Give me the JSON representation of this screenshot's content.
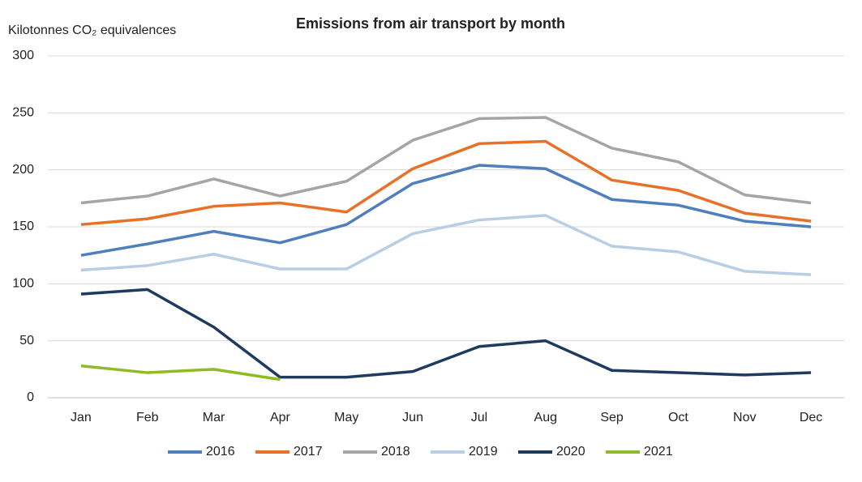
{
  "chart_data": {
    "type": "line",
    "title": "Emissions from air transport by month",
    "y_label": "Kilotonnes CO₂ equivalences",
    "categories": [
      "Jan",
      "Feb",
      "Mar",
      "Apr",
      "May",
      "Jun",
      "Jul",
      "Aug",
      "Sep",
      "Oct",
      "Nov",
      "Dec"
    ],
    "series": [
      {
        "name": "2016",
        "color": "#4f7fbf",
        "values": [
          125,
          135,
          146,
          136,
          152,
          188,
          204,
          201,
          174,
          169,
          155,
          150
        ]
      },
      {
        "name": "2017",
        "color": "#e8712a",
        "values": [
          152,
          157,
          168,
          171,
          163,
          201,
          223,
          225,
          191,
          182,
          162,
          155
        ]
      },
      {
        "name": "2018",
        "color": "#a5a5a5",
        "values": [
          171,
          177,
          192,
          177,
          190,
          226,
          245,
          246,
          219,
          207,
          178,
          171
        ]
      },
      {
        "name": "2019",
        "color": "#b9cde4",
        "values": [
          112,
          116,
          126,
          113,
          113,
          144,
          156,
          160,
          133,
          128,
          111,
          108
        ]
      },
      {
        "name": "2020",
        "color": "#1f3a5f",
        "values": [
          91,
          95,
          62,
          18,
          18,
          23,
          45,
          50,
          24,
          22,
          20,
          22
        ]
      },
      {
        "name": "2021",
        "color": "#8fbc23",
        "values": [
          28,
          22,
          25,
          16,
          null,
          null,
          null,
          null,
          null,
          null,
          null,
          null
        ]
      }
    ],
    "ylim": [
      0,
      300
    ],
    "yticks": [
      0,
      50,
      100,
      150,
      200,
      250,
      300
    ],
    "grid": true,
    "legend": "bottom"
  }
}
